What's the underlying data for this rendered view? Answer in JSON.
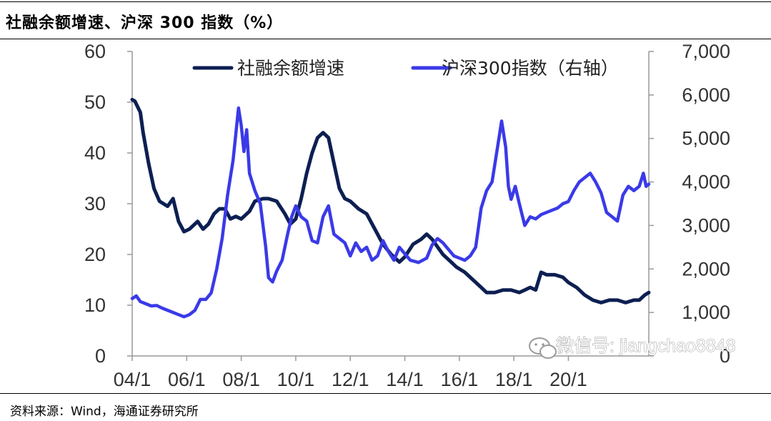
{
  "header": {
    "title": "社融余额增速、沪深 300 指数（%）"
  },
  "footer": {
    "source": "资料来源：Wind，海通证券研究所"
  },
  "watermark": {
    "text": "微信号: jiangchao8848",
    "icon": "wechat-icon"
  },
  "chart_data": {
    "type": "line",
    "legend_placement": "top",
    "grid": false,
    "x_ticks": [
      "04/1",
      "06/1",
      "08/1",
      "10/1",
      "12/1",
      "14/1",
      "16/1",
      "18/1",
      "20/1"
    ],
    "y_left": {
      "lim": [
        0,
        60
      ],
      "ticks": [
        "0",
        "10",
        "20",
        "30",
        "40",
        "50",
        "60"
      ]
    },
    "y_right": {
      "lim": [
        0,
        7000
      ],
      "ticks": [
        "0",
        "1,000",
        "2,000",
        "3,000",
        "4,000",
        "5,000",
        "6,000",
        "7,000"
      ]
    },
    "series": [
      {
        "name": "社融余额增速",
        "axis": "left",
        "color": "#0d1f52",
        "points": [
          [
            2004.0,
            50.5
          ],
          [
            2004.1,
            50.2
          ],
          [
            2004.3,
            48.0
          ],
          [
            2004.4,
            44.0
          ],
          [
            2004.6,
            38.0
          ],
          [
            2004.8,
            33.0
          ],
          [
            2005.0,
            30.5
          ],
          [
            2005.3,
            29.5
          ],
          [
            2005.5,
            31.0
          ],
          [
            2005.7,
            26.5
          ],
          [
            2005.9,
            24.5
          ],
          [
            2006.1,
            25.0
          ],
          [
            2006.4,
            26.5
          ],
          [
            2006.6,
            25.0
          ],
          [
            2006.8,
            26.0
          ],
          [
            2007.0,
            28.0
          ],
          [
            2007.2,
            29.0
          ],
          [
            2007.4,
            29.0
          ],
          [
            2007.6,
            27.0
          ],
          [
            2007.8,
            27.5
          ],
          [
            2008.0,
            27.0
          ],
          [
            2008.3,
            28.5
          ],
          [
            2008.5,
            30.5
          ],
          [
            2008.8,
            31.0
          ],
          [
            2009.0,
            31.0
          ],
          [
            2009.3,
            30.5
          ],
          [
            2009.6,
            28.0
          ],
          [
            2009.8,
            26.0
          ],
          [
            2010.0,
            27.0
          ],
          [
            2010.2,
            31.0
          ],
          [
            2010.4,
            36.0
          ],
          [
            2010.6,
            40.0
          ],
          [
            2010.8,
            43.0
          ],
          [
            2011.0,
            44.0
          ],
          [
            2011.2,
            43.0
          ],
          [
            2011.4,
            38.0
          ],
          [
            2011.6,
            33.0
          ],
          [
            2011.8,
            31.0
          ],
          [
            2012.0,
            30.5
          ],
          [
            2012.3,
            29.0
          ],
          [
            2012.6,
            28.0
          ],
          [
            2012.9,
            25.0
          ],
          [
            2013.2,
            22.0
          ],
          [
            2013.5,
            20.0
          ],
          [
            2013.8,
            18.5
          ],
          [
            2014.0,
            19.5
          ],
          [
            2014.3,
            22.0
          ],
          [
            2014.6,
            23.0
          ],
          [
            2014.8,
            24.0
          ],
          [
            2015.0,
            23.0
          ],
          [
            2015.2,
            21.5
          ],
          [
            2015.4,
            20.0
          ],
          [
            2015.6,
            19.0
          ],
          [
            2015.9,
            17.5
          ],
          [
            2016.2,
            16.5
          ],
          [
            2016.5,
            15.0
          ],
          [
            2016.8,
            13.5
          ],
          [
            2017.0,
            12.5
          ],
          [
            2017.3,
            12.5
          ],
          [
            2017.6,
            13.0
          ],
          [
            2017.9,
            13.0
          ],
          [
            2018.2,
            12.5
          ],
          [
            2018.4,
            13.0
          ],
          [
            2018.6,
            13.5
          ],
          [
            2018.8,
            13.0
          ],
          [
            2019.0,
            16.5
          ],
          [
            2019.2,
            16.0
          ],
          [
            2019.5,
            16.0
          ],
          [
            2019.8,
            15.5
          ],
          [
            2020.0,
            14.5
          ],
          [
            2020.3,
            13.5
          ],
          [
            2020.6,
            12.0
          ],
          [
            2020.9,
            11.0
          ],
          [
            2021.2,
            10.5
          ],
          [
            2021.5,
            11.0
          ],
          [
            2021.8,
            11.0
          ],
          [
            2022.1,
            10.5
          ],
          [
            2022.4,
            11.0
          ],
          [
            2022.6,
            11.0
          ],
          [
            2022.8,
            12.0
          ],
          [
            2022.95,
            12.5
          ]
        ]
      },
      {
        "name": "沪深300指数（右轴）",
        "axis": "right",
        "color": "#3a3ae8",
        "points": [
          [
            2004.0,
            1320
          ],
          [
            2004.15,
            1380
          ],
          [
            2004.3,
            1250
          ],
          [
            2004.5,
            1200
          ],
          [
            2004.7,
            1150
          ],
          [
            2004.9,
            1160
          ],
          [
            2005.1,
            1100
          ],
          [
            2005.3,
            1050
          ],
          [
            2005.5,
            1000
          ],
          [
            2005.7,
            950
          ],
          [
            2005.9,
            900
          ],
          [
            2006.1,
            950
          ],
          [
            2006.3,
            1050
          ],
          [
            2006.5,
            1300
          ],
          [
            2006.7,
            1300
          ],
          [
            2006.9,
            1450
          ],
          [
            2007.1,
            2000
          ],
          [
            2007.3,
            2700
          ],
          [
            2007.5,
            3700
          ],
          [
            2007.7,
            4500
          ],
          [
            2007.9,
            5700
          ],
          [
            2008.0,
            5300
          ],
          [
            2008.1,
            4700
          ],
          [
            2008.2,
            5200
          ],
          [
            2008.3,
            4200
          ],
          [
            2008.5,
            3800
          ],
          [
            2008.7,
            3500
          ],
          [
            2008.9,
            2500
          ],
          [
            2009.0,
            1800
          ],
          [
            2009.15,
            1700
          ],
          [
            2009.3,
            1950
          ],
          [
            2009.5,
            2200
          ],
          [
            2009.7,
            2800
          ],
          [
            2009.85,
            3200
          ],
          [
            2010.0,
            3450
          ],
          [
            2010.2,
            3200
          ],
          [
            2010.4,
            3100
          ],
          [
            2010.6,
            2650
          ],
          [
            2010.8,
            2600
          ],
          [
            2011.0,
            3200
          ],
          [
            2011.2,
            3450
          ],
          [
            2011.4,
            2800
          ],
          [
            2011.6,
            2700
          ],
          [
            2011.8,
            2600
          ],
          [
            2012.0,
            2300
          ],
          [
            2012.2,
            2600
          ],
          [
            2012.4,
            2400
          ],
          [
            2012.6,
            2500
          ],
          [
            2012.8,
            2200
          ],
          [
            2013.0,
            2300
          ],
          [
            2013.2,
            2650
          ],
          [
            2013.4,
            2400
          ],
          [
            2013.6,
            2200
          ],
          [
            2013.8,
            2500
          ],
          [
            2014.0,
            2350
          ],
          [
            2014.2,
            2200
          ],
          [
            2014.5,
            2150
          ],
          [
            2014.8,
            2250
          ],
          [
            2015.0,
            2550
          ],
          [
            2015.2,
            2700
          ],
          [
            2015.4,
            2600
          ],
          [
            2015.6,
            2450
          ],
          [
            2015.8,
            2300
          ],
          [
            2016.0,
            2250
          ],
          [
            2016.2,
            2200
          ],
          [
            2016.4,
            2300
          ],
          [
            2016.6,
            2500
          ],
          [
            2016.8,
            3400
          ],
          [
            2017.0,
            3800
          ],
          [
            2017.2,
            4000
          ],
          [
            2017.4,
            4800
          ],
          [
            2017.55,
            5400
          ],
          [
            2017.7,
            4800
          ],
          [
            2017.8,
            3900
          ],
          [
            2017.9,
            3600
          ],
          [
            2018.05,
            3900
          ],
          [
            2018.2,
            3500
          ],
          [
            2018.4,
            3000
          ],
          [
            2018.6,
            3200
          ],
          [
            2018.8,
            3150
          ],
          [
            2019.0,
            3250
          ],
          [
            2019.2,
            3300
          ],
          [
            2019.4,
            3350
          ],
          [
            2019.6,
            3400
          ],
          [
            2019.8,
            3500
          ],
          [
            2020.0,
            3550
          ],
          [
            2020.2,
            3800
          ],
          [
            2020.4,
            4000
          ],
          [
            2020.6,
            4100
          ],
          [
            2020.8,
            4200
          ],
          [
            2021.0,
            4000
          ],
          [
            2021.2,
            3750
          ],
          [
            2021.4,
            3300
          ],
          [
            2021.6,
            3200
          ],
          [
            2021.8,
            3100
          ],
          [
            2022.0,
            3700
          ],
          [
            2022.2,
            3900
          ],
          [
            2022.4,
            3800
          ],
          [
            2022.6,
            3900
          ],
          [
            2022.75,
            4200
          ],
          [
            2022.85,
            3900
          ],
          [
            2022.95,
            3950
          ]
        ]
      }
    ]
  }
}
